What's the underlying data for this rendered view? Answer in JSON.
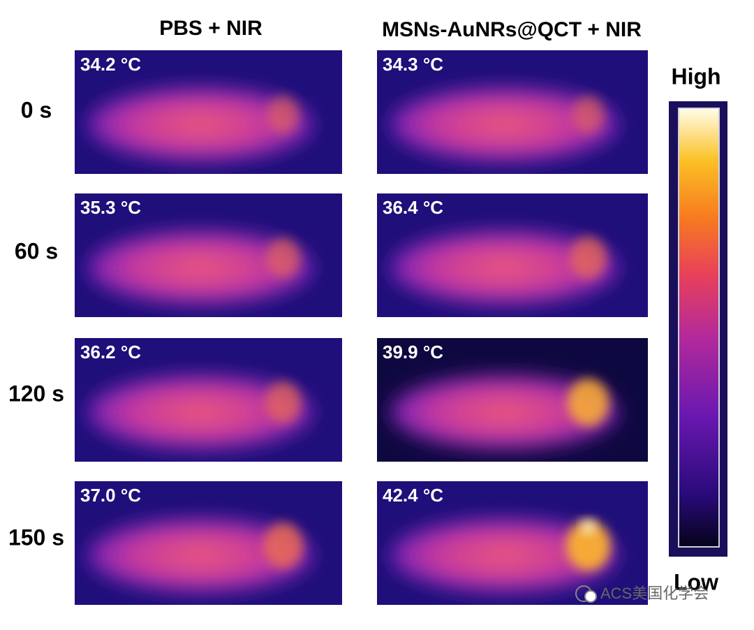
{
  "column_headers": [
    "PBS + NIR",
    "MSNs-AuNRs@QCT + NIR"
  ],
  "row_labels": [
    "0 s",
    "60 s",
    "120 s",
    "150 s"
  ],
  "temperatures": [
    [
      "34.2 °C",
      "34.3 °C"
    ],
    [
      "35.3 °C",
      "36.4 °C"
    ],
    [
      "36.2 °C",
      "39.9 °C"
    ],
    [
      "37.0 °C",
      "42.4 °C"
    ]
  ],
  "colorbar": {
    "high": "High",
    "low": "Low"
  },
  "watermark": "ACS美国化学会"
}
